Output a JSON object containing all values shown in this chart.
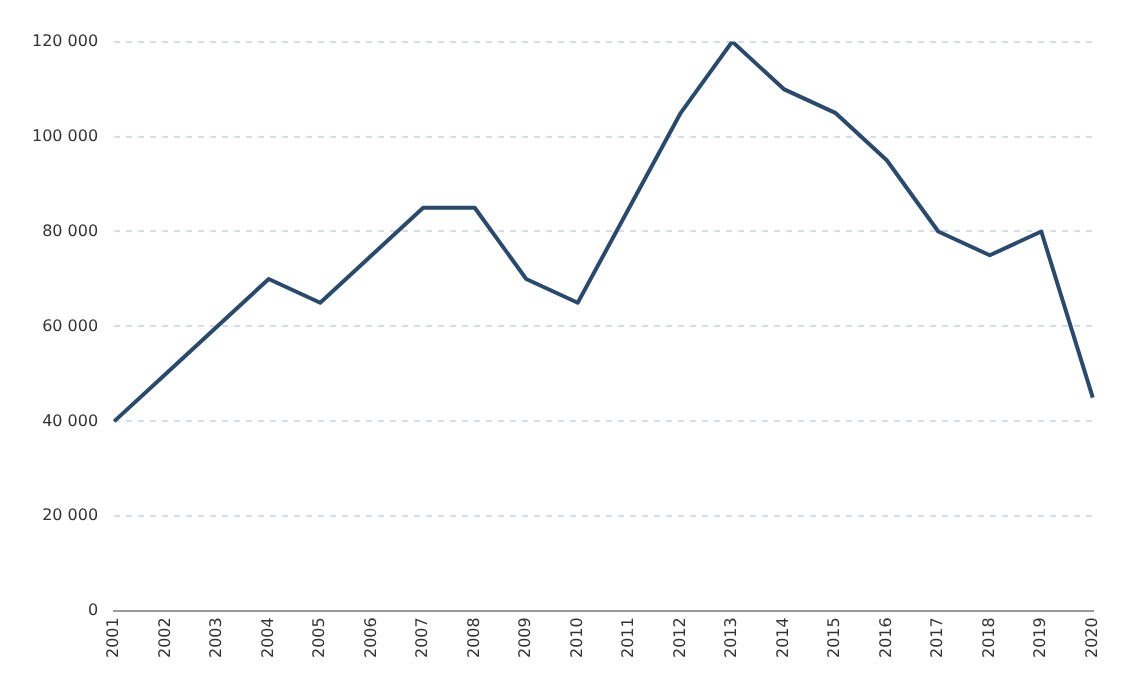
{
  "chart_data": {
    "type": "line",
    "categories": [
      "2001",
      "2002",
      "2003",
      "2004",
      "2005",
      "2006",
      "2007",
      "2008",
      "2009",
      "2010",
      "2011",
      "2012",
      "2013",
      "2014",
      "2015",
      "2016",
      "2017",
      "2018",
      "2019",
      "2020"
    ],
    "series": [
      {
        "color": "#2b4a6b",
        "values": [
          40000,
          50000,
          60000,
          70000,
          65000,
          75000,
          85000,
          85000,
          70000,
          65000,
          85000,
          105000,
          120000,
          110000,
          105000,
          95000,
          80000,
          75000,
          80000,
          45000
        ]
      }
    ],
    "ylim": [
      0,
      120000
    ],
    "yticks": [
      0,
      {
        "value": 20000,
        "label": "20 000"
      },
      {
        "value": 40000,
        "label": "40 000"
      },
      {
        "value": 60000,
        "label": "60 000"
      },
      {
        "value": 80000,
        "label": "80 000"
      },
      {
        "value": 100000,
        "label": "100 000"
      },
      {
        "value": 120000,
        "label": "120 000"
      }
    ],
    "grid": "y",
    "legend": false,
    "marker": "none",
    "line_style": "solid"
  }
}
